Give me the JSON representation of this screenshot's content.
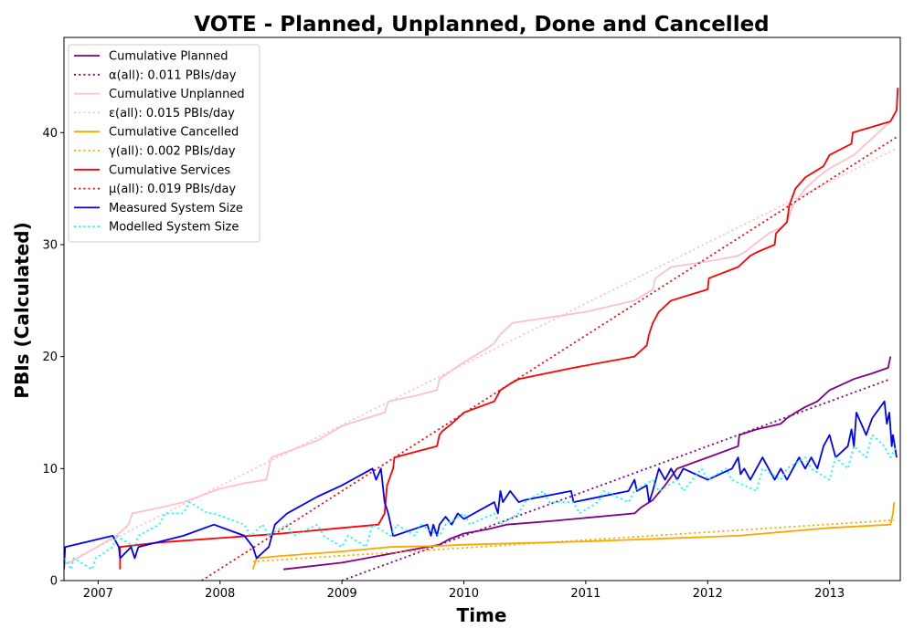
{
  "chart_data": {
    "type": "line",
    "title": "VOTE - Planned, Unplanned, Done  and Cancelled",
    "xlabel": "Time",
    "ylabel": "PBIs (Calculated)",
    "xlim": [
      2006.72,
      2013.58
    ],
    "ylim": [
      0,
      48.5
    ],
    "x_ticks": [
      2007,
      2008,
      2009,
      2010,
      2011,
      2012,
      2013
    ],
    "y_ticks": [
      0,
      10,
      20,
      30,
      40
    ],
    "grid": false,
    "legend_position": "upper-left",
    "series": [
      {
        "name": "Cumulative Planned",
        "color": "#800080",
        "style": "solid",
        "x": [
          2008.52,
          2009.0,
          2009.3,
          2009.6,
          2009.8,
          2009.88,
          2010.0,
          2010.2,
          2010.35,
          2010.7,
          2011.0,
          2011.4,
          2011.45,
          2011.55,
          2011.65,
          2011.75,
          2012.0,
          2012.25,
          2012.26,
          2012.4,
          2012.6,
          2012.65,
          2012.72,
          2012.8,
          2012.9,
          2013.0,
          2013.2,
          2013.35,
          2013.48,
          2013.5
        ],
        "y": [
          1,
          1.6,
          2.2,
          2.8,
          3.2,
          3.7,
          4.2,
          4.6,
          5,
          5.3,
          5.6,
          6,
          6.5,
          7.2,
          8.5,
          10,
          11,
          12,
          13,
          13.5,
          14,
          14.5,
          15,
          15.5,
          16,
          17,
          18,
          18.5,
          19,
          20
        ]
      },
      {
        "name": "α(all): 0.011 PBIs/day",
        "color": "#800080",
        "style": "dotted",
        "x": [
          2009.0,
          2013.5
        ],
        "y": [
          0,
          18
        ]
      },
      {
        "name": "Cumulative Unplanned",
        "color": "#ffc0cb",
        "style": "solid",
        "x": [
          2006.75,
          2007.15,
          2007.25,
          2007.28,
          2007.5,
          2007.7,
          2007.9,
          2008.0,
          2008.2,
          2008.38,
          2008.42,
          2008.6,
          2008.8,
          2009.0,
          2009.2,
          2009.35,
          2009.38,
          2009.6,
          2009.78,
          2009.8,
          2010.0,
          2010.2,
          2010.25,
          2010.3,
          2010.4,
          2011.0,
          2011.4,
          2011.55,
          2011.57,
          2011.7,
          2012.0,
          2012.25,
          2012.3,
          2012.5,
          2012.6,
          2012.65,
          2012.7,
          2012.8,
          2012.9,
          2013.0,
          2013.2,
          2013.25,
          2013.5,
          2013.55
        ],
        "y": [
          1.5,
          4,
          5,
          6,
          6.5,
          7,
          7.8,
          8.2,
          8.7,
          9,
          11,
          11.7,
          12.5,
          13.8,
          14.5,
          15,
          16,
          16.5,
          17,
          18,
          19.5,
          20.8,
          21.2,
          22,
          23,
          24,
          25,
          26,
          27,
          28,
          28.5,
          29,
          29.3,
          31,
          31.5,
          32,
          33.5,
          35,
          36,
          36.8,
          38,
          38.5,
          41,
          42
        ]
      },
      {
        "name": "ε(all): 0.015 PBIs/day",
        "color": "#ffc0cb",
        "style": "dotted",
        "x": [
          2006.72,
          2013.55
        ],
        "y": [
          1.5,
          38.6
        ]
      },
      {
        "name": "Cumulative Cancelled",
        "color": "#ffa500",
        "style": "solid",
        "x": [
          2008.27,
          2008.3,
          2008.5,
          2009.0,
          2009.4,
          2009.8,
          2010.0,
          2011.0,
          2012.25,
          2013.0,
          2013.5,
          2013.52,
          2013.53
        ],
        "y": [
          1,
          2,
          2.2,
          2.6,
          3,
          3.1,
          3.2,
          3.5,
          4,
          4.7,
          5,
          6,
          7
        ]
      },
      {
        "name": "γ(all): 0.002 PBIs/day",
        "color": "#ffa500",
        "style": "dotted",
        "x": [
          2008.27,
          2013.53
        ],
        "y": [
          1.7,
          5.4
        ]
      },
      {
        "name": "Cumulative Services",
        "color": "#ff0000",
        "style": "solid",
        "x": [
          2007.18,
          2007.18,
          2007.5,
          2008.0,
          2008.5,
          2009.0,
          2009.3,
          2009.35,
          2009.37,
          2009.42,
          2009.43,
          2009.78,
          2009.8,
          2009.82,
          2009.9,
          2010.0,
          2010.25,
          2010.3,
          2010.4,
          2010.45,
          2010.9,
          2011.4,
          2011.5,
          2011.52,
          2011.55,
          2011.6,
          2011.7,
          2012.0,
          2012.01,
          2012.25,
          2012.35,
          2012.4,
          2012.55,
          2012.56,
          2012.65,
          2012.67,
          2012.72,
          2012.8,
          2012.95,
          2013.0,
          2013.18,
          2013.19,
          2013.5,
          2013.55,
          2013.56
        ],
        "y": [
          1,
          3,
          3.4,
          3.8,
          4.2,
          4.7,
          5,
          6,
          8.5,
          10,
          11,
          12,
          13,
          13.3,
          14,
          15,
          16,
          17,
          17.7,
          18,
          19,
          20,
          21,
          22,
          23,
          24,
          25,
          26,
          27,
          28,
          29,
          29.3,
          30,
          31,
          32,
          33.5,
          35,
          36,
          37,
          38,
          39,
          40,
          41,
          42,
          44
        ]
      },
      {
        "name": "μ(all): 0.019 PBIs/day",
        "color": "#ff0000",
        "style": "dotted",
        "x": [
          2007.85,
          2013.55
        ],
        "y": [
          0,
          39.6
        ]
      },
      {
        "name": "Measured System Size",
        "color": "#0000ff",
        "style": "solid",
        "x": [
          2006.72,
          2006.73,
          2007.12,
          2007.17,
          2007.18,
          2007.27,
          2007.3,
          2007.33,
          2007.7,
          2007.95,
          2008.2,
          2008.27,
          2008.3,
          2008.4,
          2008.45,
          2008.55,
          2008.8,
          2009.0,
          2009.25,
          2009.28,
          2009.32,
          2009.35,
          2009.38,
          2009.42,
          2009.43,
          2009.7,
          2009.73,
          2009.75,
          2009.78,
          2009.8,
          2009.85,
          2009.9,
          2009.95,
          2010.0,
          2010.25,
          2010.28,
          2010.3,
          2010.32,
          2010.38,
          2010.45,
          2010.5,
          2010.88,
          2010.9,
          2011.35,
          2011.4,
          2011.42,
          2011.5,
          2011.52,
          2011.55,
          2011.6,
          2011.65,
          2011.7,
          2011.75,
          2011.8,
          2012.0,
          2012.2,
          2012.25,
          2012.27,
          2012.3,
          2012.35,
          2012.4,
          2012.45,
          2012.5,
          2012.55,
          2012.6,
          2012.65,
          2012.7,
          2012.75,
          2012.8,
          2012.85,
          2012.9,
          2012.95,
          2013.0,
          2013.05,
          2013.15,
          2013.18,
          2013.2,
          2013.22,
          2013.3,
          2013.35,
          2013.45,
          2013.47,
          2013.49,
          2013.51,
          2013.52,
          2013.55
        ],
        "y": [
          1,
          3,
          4,
          3,
          2,
          3,
          2,
          3,
          4,
          5,
          4,
          3,
          2,
          3,
          5,
          6,
          7.5,
          8.5,
          10,
          9,
          10,
          7,
          6,
          4,
          4,
          5,
          4,
          5,
          4,
          5,
          5.7,
          5,
          6,
          5.5,
          7,
          6,
          8,
          7,
          8,
          7,
          7.2,
          8,
          7,
          8,
          9,
          8,
          8.5,
          7,
          8,
          10,
          9,
          10,
          9,
          10,
          9,
          10,
          11,
          9.5,
          10,
          9,
          10,
          11,
          10,
          9,
          10,
          9,
          10,
          11,
          10,
          11,
          10,
          12,
          13,
          11,
          12,
          13.5,
          12,
          15,
          13,
          14.5,
          16,
          14,
          15,
          12,
          13,
          11
        ]
      },
      {
        "name": "Modelled System Size",
        "color": "#00ffff",
        "style": "dotted",
        "x": [
          2006.72,
          2006.78,
          2006.8,
          2006.95,
          2006.98,
          2007.12,
          2007.15,
          2007.3,
          2007.33,
          2007.5,
          2007.55,
          2007.7,
          2007.75,
          2007.9,
          2007.95,
          2008.2,
          2008.25,
          2008.35,
          2008.4,
          2008.55,
          2008.6,
          2008.8,
          2008.85,
          2009.0,
          2009.05,
          2009.2,
          2009.25,
          2009.4,
          2009.45,
          2009.6,
          2009.65,
          2009.8,
          2009.85,
          2010.0,
          2010.05,
          2010.25,
          2010.3,
          2010.45,
          2010.5,
          2010.65,
          2010.7,
          2010.9,
          2010.95,
          2011.1,
          2011.15,
          2011.35,
          2011.4,
          2011.55,
          2011.6,
          2011.75,
          2011.8,
          2011.95,
          2012.0,
          2012.15,
          2012.2,
          2012.4,
          2012.45,
          2012.6,
          2012.65,
          2012.8,
          2012.85,
          2013.0,
          2013.05,
          2013.15,
          2013.2,
          2013.3,
          2013.35,
          2013.45,
          2013.5,
          2013.55
        ],
        "y": [
          2,
          1,
          2,
          1,
          2,
          3,
          4,
          3,
          4,
          5,
          6,
          6,
          7,
          6,
          6,
          5,
          4,
          5,
          4,
          5,
          4,
          5,
          4,
          3,
          4,
          3,
          5,
          4,
          5,
          4,
          5,
          4,
          5,
          6,
          5,
          6,
          5,
          6,
          7,
          8,
          7,
          7,
          6,
          7,
          8,
          7,
          8,
          9,
          8,
          9,
          8,
          10,
          9,
          10,
          9,
          8,
          10,
          9,
          10,
          11,
          10,
          9,
          11,
          10,
          12,
          11,
          13,
          12,
          11,
          12
        ]
      }
    ]
  }
}
